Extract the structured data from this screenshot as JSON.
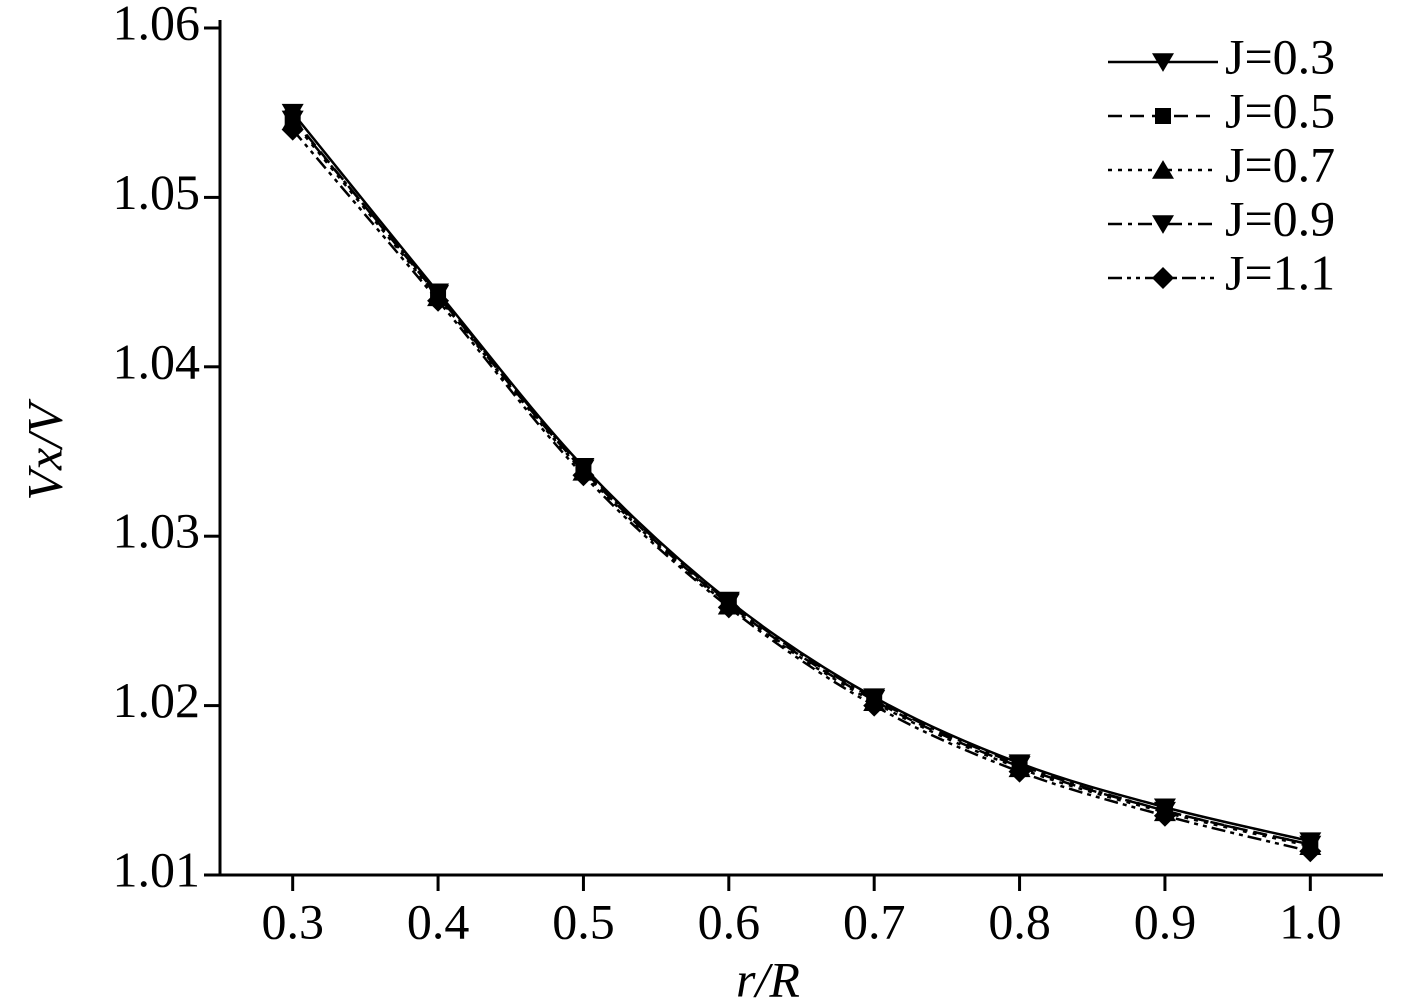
{
  "chart_data": {
    "type": "line",
    "x_label": "r/R",
    "y_label": "Vx/V",
    "x": [
      0.3,
      0.4,
      0.5,
      0.6,
      0.7,
      0.8,
      0.9,
      1.0
    ],
    "series": [
      {
        "name": "J=0.3",
        "color": "#000000",
        "values": [
          1.055,
          1.0444,
          1.0341,
          1.0262,
          1.0205,
          1.0166,
          1.014,
          1.012
        ]
      },
      {
        "name": "J=0.5",
        "color": "#000000",
        "values": [
          1.0547,
          1.0442,
          1.0339,
          1.026,
          1.0203,
          1.0164,
          1.0138,
          1.0118
        ]
      },
      {
        "name": "J=0.7",
        "color": "#000000",
        "values": [
          1.0545,
          1.0441,
          1.0338,
          1.0259,
          1.0202,
          1.0163,
          1.0137,
          1.0117
        ]
      },
      {
        "name": "J=0.9",
        "color": "#000000",
        "values": [
          1.0546,
          1.0443,
          1.034,
          1.0261,
          1.0204,
          1.0165,
          1.0138,
          1.0118
        ]
      },
      {
        "name": "J=1.1",
        "color": "#000000",
        "values": [
          1.054,
          1.0439,
          1.0336,
          1.0258,
          1.02,
          1.0161,
          1.0135,
          1.0114
        ]
      }
    ],
    "xlim": [
      0.25,
      1.05
    ],
    "ylim": [
      1.01,
      1.06
    ],
    "xticks": [
      0.3,
      0.4,
      0.5,
      0.6,
      0.7,
      0.8,
      0.9,
      {
        "value": 1.0,
        "label": "1.0"
      }
    ],
    "yticks": [
      1.01,
      1.02,
      1.03,
      1.04,
      1.05,
      1.06
    ],
    "legend": "upper right"
  }
}
